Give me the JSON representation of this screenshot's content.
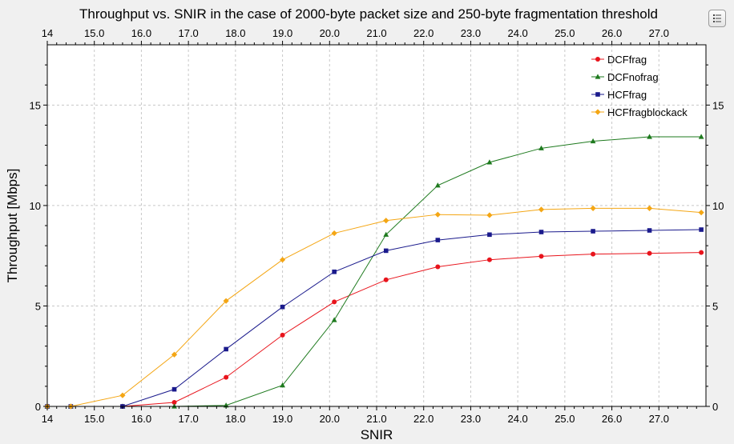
{
  "chart_data": {
    "type": "line",
    "title": "Throughput vs. SNIR in the case of 2000-byte packet size and 250-byte fragmentation threshold",
    "xlabel": "SNIR",
    "ylabel": "Throughput [Mbps]",
    "xlim": [
      14,
      28
    ],
    "ylim": [
      0,
      18
    ],
    "xticks": [
      "14",
      "15.0",
      "16.0",
      "17.0",
      "18.0",
      "19.0",
      "20.0",
      "21.0",
      "22.0",
      "23.0",
      "24.0",
      "25.0",
      "26.0",
      "27.0"
    ],
    "yticks": [
      "0",
      "5",
      "10",
      "15"
    ],
    "grid": true,
    "legend_position": "top-right",
    "x": [
      14.0,
      14.5,
      15.6,
      16.7,
      17.8,
      19.0,
      20.1,
      21.2,
      22.3,
      23.4,
      24.5,
      25.6,
      26.8,
      27.9
    ],
    "series": [
      {
        "name": "DCFfrag",
        "color": "#e8141c",
        "marker": "circle",
        "values": [
          0.0,
          0.0,
          0.0,
          0.2,
          1.45,
          3.55,
          5.2,
          6.3,
          6.95,
          7.3,
          7.47,
          7.58,
          7.62,
          7.66
        ]
      },
      {
        "name": "DCFnofrag",
        "color": "#1e7a1e",
        "marker": "triangle",
        "values": [
          0.0,
          0.0,
          0.0,
          0.0,
          0.05,
          1.05,
          4.3,
          8.55,
          11.0,
          12.15,
          12.85,
          13.2,
          13.42,
          13.42
        ]
      },
      {
        "name": "HCFfrag",
        "color": "#1a1a8c",
        "marker": "square",
        "values": [
          0.0,
          0.0,
          0.0,
          0.85,
          2.85,
          4.95,
          6.7,
          7.75,
          8.28,
          8.55,
          8.68,
          8.72,
          8.76,
          8.8
        ]
      },
      {
        "name": "HCFfragblockack",
        "color": "#f4a614",
        "marker": "diamond",
        "values": [
          0.0,
          0.0,
          0.55,
          2.58,
          5.25,
          7.3,
          8.62,
          9.25,
          9.55,
          9.52,
          9.8,
          9.86,
          9.86,
          9.65
        ]
      }
    ]
  }
}
